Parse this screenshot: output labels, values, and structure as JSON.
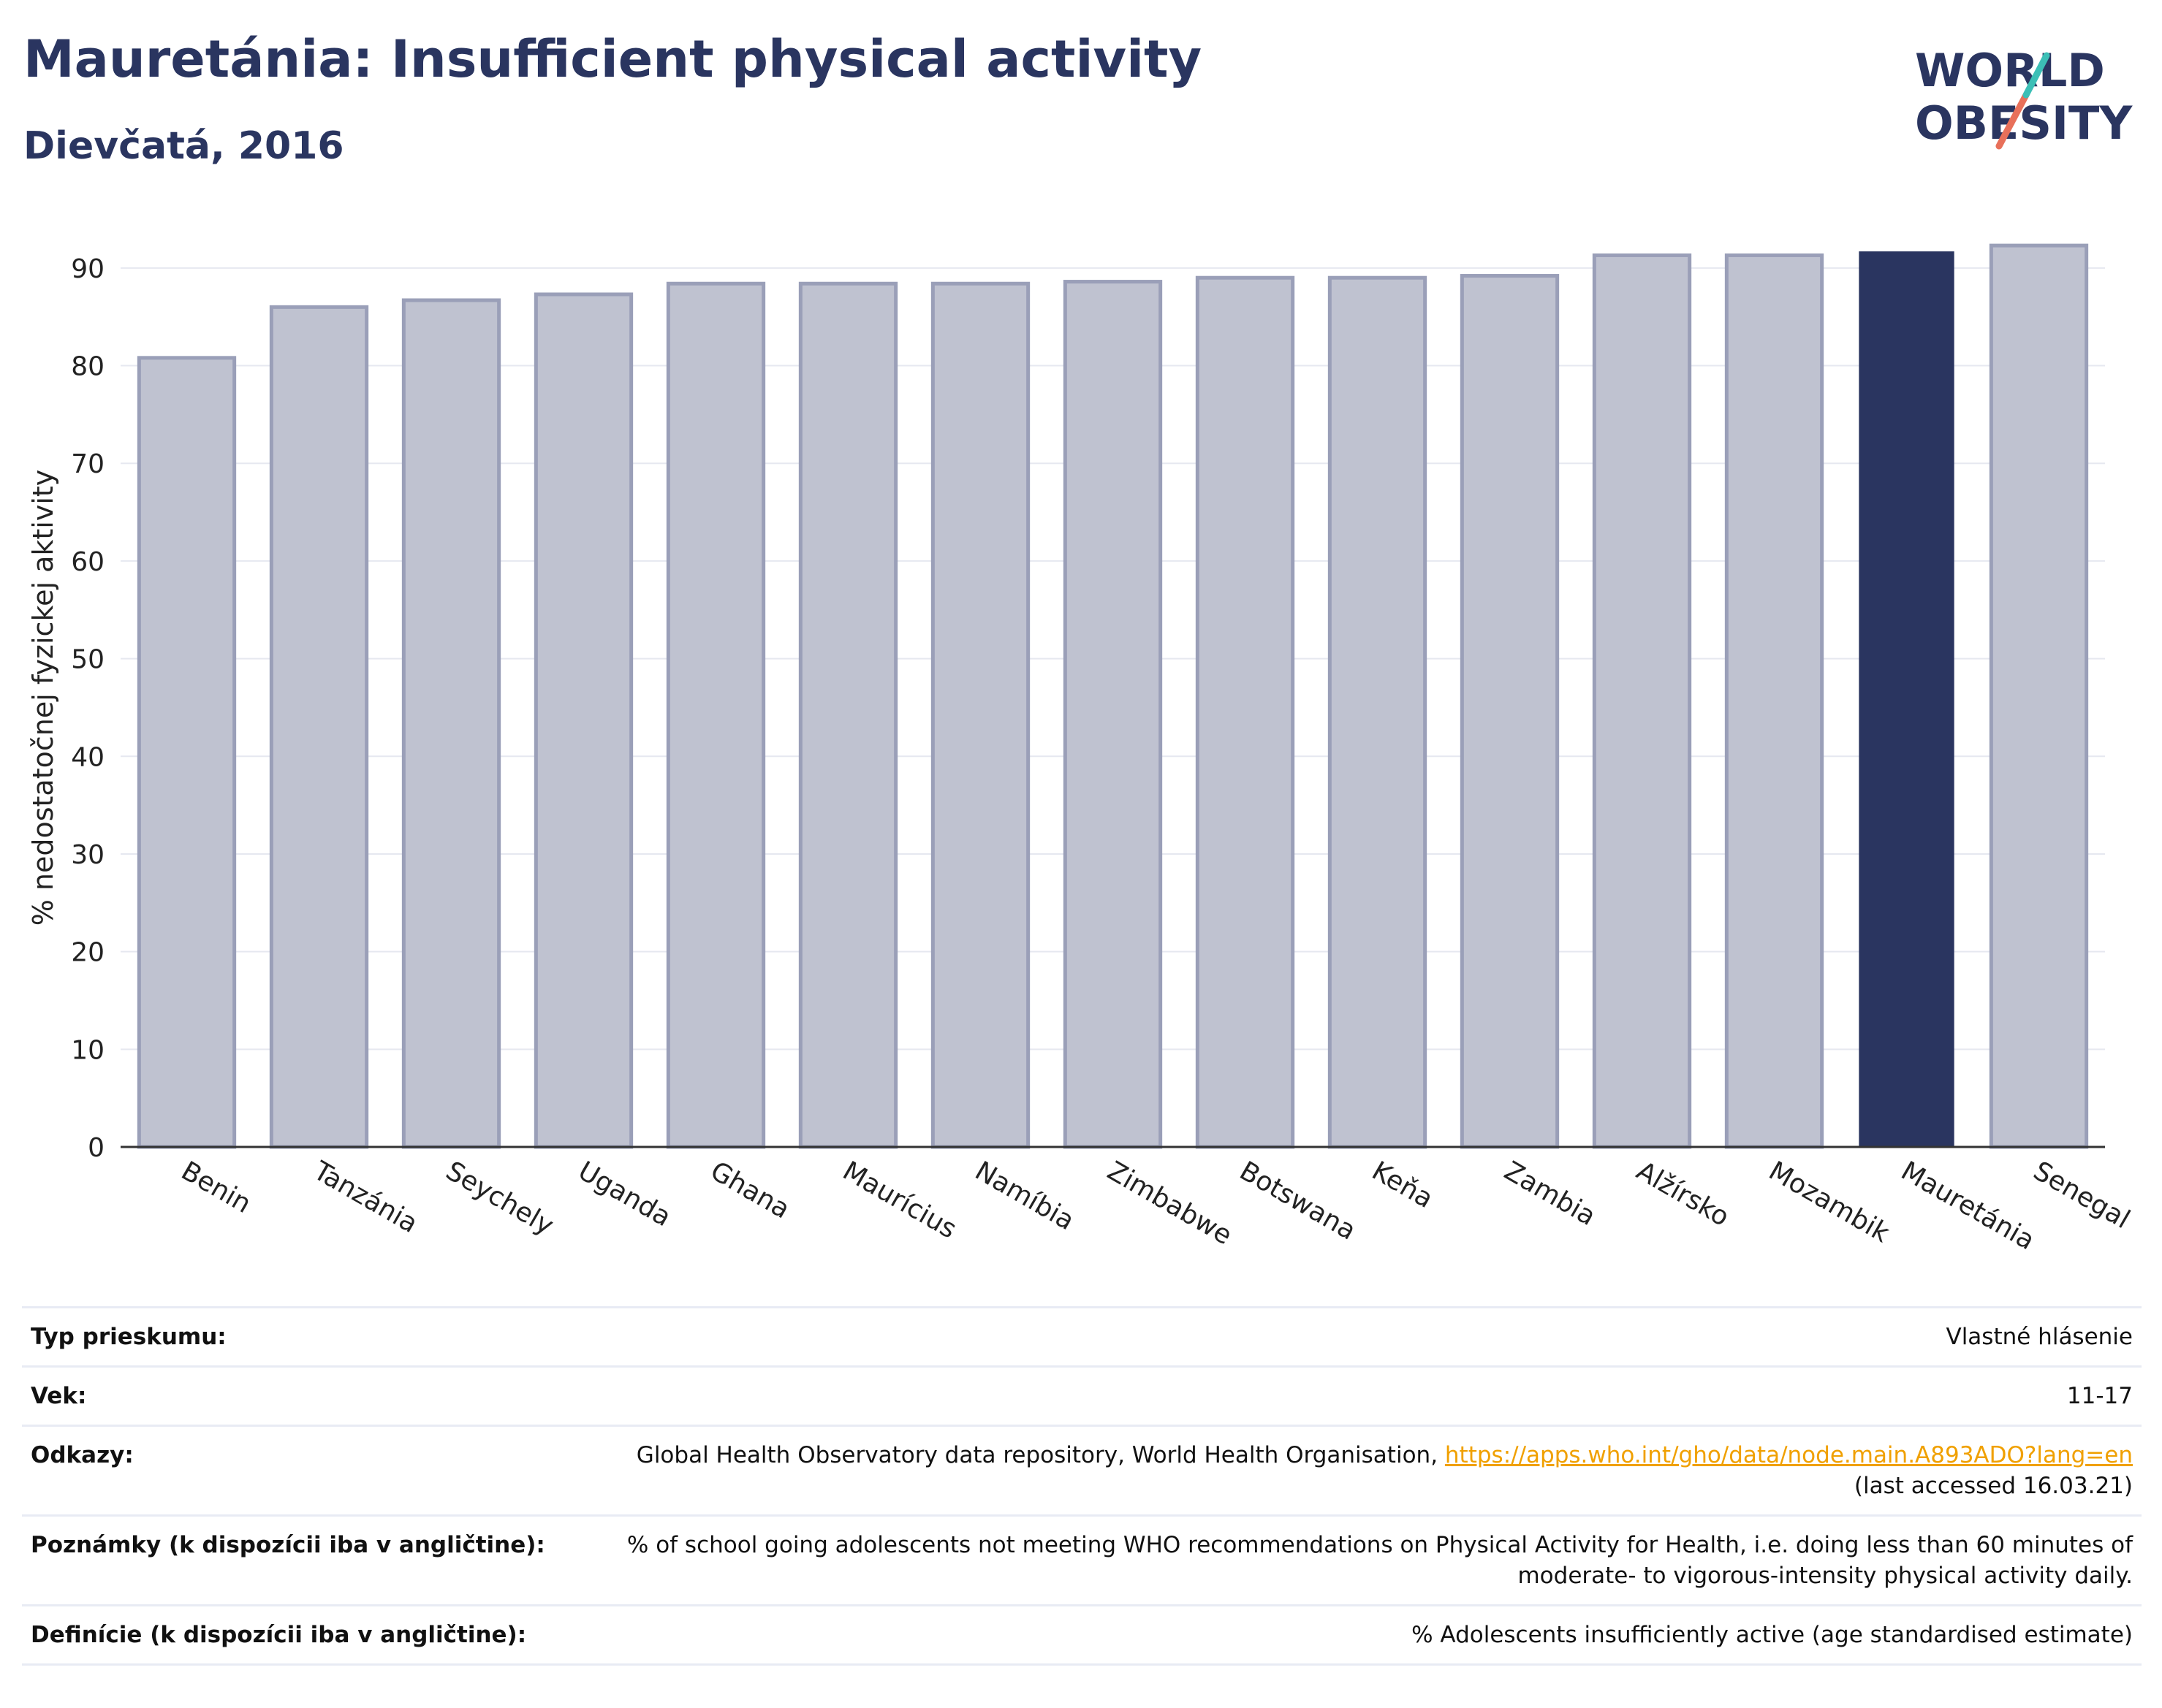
{
  "header": {
    "title": "Mauretánia: Insufficient physical activity",
    "subtitle": "Dievčatá, 2016"
  },
  "logo": {
    "line1": "WORLD",
    "line2": "OBESITY"
  },
  "colors": {
    "bar": "#bfc2d0",
    "bar_border": "#9a9fb8",
    "highlight": "#2a3560",
    "title": "#2a3560",
    "link": "#f0a000"
  },
  "chart_data": {
    "type": "bar",
    "title": "Mauretánia: Insufficient physical activity",
    "subtitle": "Dievčatá, 2016",
    "ylabel": "% nedostatočnej fyzickej aktivity",
    "xlabel": "",
    "ylim": [
      0,
      95
    ],
    "yticks": [
      0,
      10,
      20,
      30,
      40,
      50,
      60,
      70,
      80,
      90
    ],
    "grid": true,
    "highlight": "Mauretánia",
    "categories": [
      "Benin",
      "Tanzánia",
      "Seychely",
      "Uganda",
      "Ghana",
      "Maurícius",
      "Namíbia",
      "Zimbabwe",
      "Botswana",
      "Keňa",
      "Zambia",
      "Alžírsko",
      "Mozambik",
      "Mauretánia",
      "Senegal"
    ],
    "values": [
      80.8,
      86.0,
      86.7,
      87.3,
      88.4,
      88.4,
      88.4,
      88.6,
      89.0,
      89.0,
      89.2,
      91.3,
      91.3,
      91.7,
      92.3
    ]
  },
  "info": {
    "survey_label": "Typ prieskumu:",
    "survey_value": "Vlastné hlásenie",
    "age_label": "Vek:",
    "age_value": "11-17",
    "refs_label": "Odkazy:",
    "refs_text": "Global Health Observatory data repository, World Health Organisation, ",
    "refs_link": "https://apps.who.int/gho/data/node.main.A893ADO?lang=en",
    "refs_note": "(last accessed 16.03.21)",
    "notes_label": "Poznámky (k dispozícii iba v angličtine):",
    "notes_line1": "% of school going adolescents not meeting WHO recommendations on Physical Activity for Health, i.e. doing less than 60 minutes of",
    "notes_line2": "moderate- to vigorous-intensity physical activity daily.",
    "def_label": "Definície (k dispozícii iba v angličtine):",
    "def_value": "% Adolescents insufficiently active (age standardised estimate)"
  }
}
